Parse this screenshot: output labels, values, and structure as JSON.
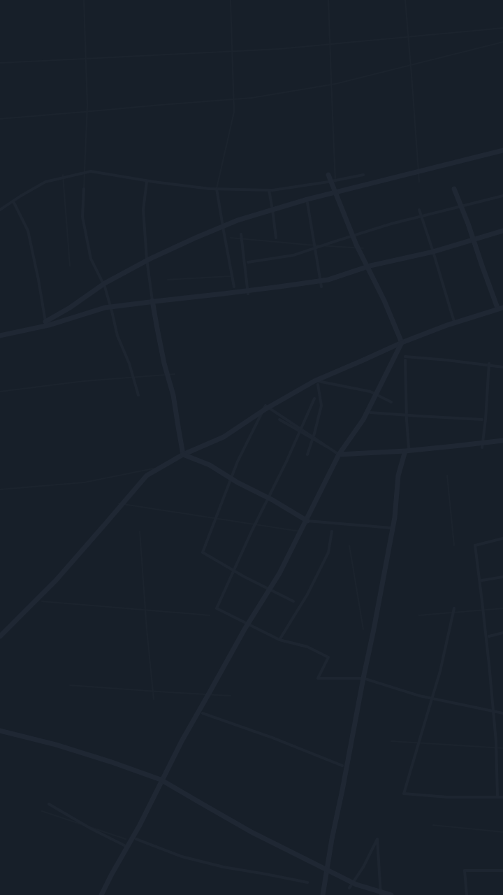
{
  "screen": {
    "type": "map",
    "theme": "dark",
    "background_color": "#171f29",
    "road_colors": {
      "major": "#1f2733",
      "mid": "#1d2530",
      "minor": "#1b232d"
    }
  }
}
